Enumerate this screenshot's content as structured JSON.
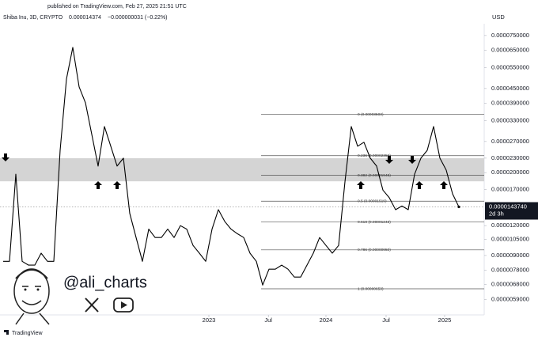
{
  "chart_data": {
    "type": "line",
    "published": "published on TradingView.com, Feb 27, 2025 21:51 UTC",
    "header_price": "0.000014374",
    "header_change": "−0.000000031 (−0.22%)",
    "currency": "USD",
    "watermark": "@ali_charts",
    "brand": "TradingView",
    "price_label": "0.0000143740",
    "countdown": "2d 3h",
    "log_scale": true,
    "grid": false,
    "xlim": [
      0,
      76
    ],
    "xticks": [
      {
        "value": 32.5,
        "label": "2023"
      },
      {
        "value": 41.9,
        "label": "Jul"
      },
      {
        "value": 51,
        "label": "2024"
      },
      {
        "value": 60.5,
        "label": "Jul"
      },
      {
        "value": 69.75,
        "label": "2025"
      }
    ],
    "ylim": [
      5e-06,
      8.4e-05
    ],
    "yticks": [
      {
        "value": 7.5e-05,
        "label": "0.0000750000"
      },
      {
        "value": 6.5e-05,
        "label": "0.0000650000"
      },
      {
        "value": 5.5e-05,
        "label": "0.0000550000"
      },
      {
        "value": 4.5e-05,
        "label": "0.0000450000"
      },
      {
        "value": 3.9e-05,
        "label": "0.0000390000"
      },
      {
        "value": 3.3e-05,
        "label": "0.0000330000"
      },
      {
        "value": 2.7e-05,
        "label": "0.0000270000"
      },
      {
        "value": 2.3e-05,
        "label": "0.0000230000"
      },
      {
        "value": 2e-05,
        "label": "0.0000200000"
      },
      {
        "value": 1.7e-05,
        "label": "0.0000170000"
      },
      {
        "value": 1.2e-05,
        "label": "0.0000120000"
      },
      {
        "value": 1.05e-05,
        "label": "0.0000105000"
      },
      {
        "value": 9e-06,
        "label": "0.0000090000"
      },
      {
        "value": 7.8e-06,
        "label": "0.0000078000"
      },
      {
        "value": 6.8e-06,
        "label": "0.0000068000"
      },
      {
        "value": 5.9e-06,
        "label": "0.0000059000"
      }
    ],
    "zone": [
      1.84e-05,
      2.3e-05
    ],
    "zone_color": "#d4d4d4",
    "fib_levels": [
      {
        "value": 3.503e-05,
        "label": "0 (0.00003503)"
      },
      {
        "value": 2.356e-05,
        "label": "0.236 (0.00002356)"
      },
      {
        "value": 1.948e-05,
        "label": "0.382 (0.00001948)"
      },
      {
        "value": 1.519e-05,
        "label": "0.5 (0.00001519)"
      },
      {
        "value": 1.243e-05,
        "label": "0.618 (0.00001243)"
      },
      {
        "value": 9.5e-06,
        "label": "0.786 (0.00000950)"
      },
      {
        "value": 6.53e-06,
        "label": "1 (0.00000653)"
      }
    ],
    "series": [
      {
        "name": "Shiba Inu, 3D, CRYPTO",
        "color": "#000000",
        "values": [
          8.51e-06,
          8.51e-06,
          1.97e-05,
          8.51e-06,
          8.2e-06,
          8.2e-06,
          9.2e-06,
          8.51e-06,
          8.51e-06,
          2.48e-05,
          4.93e-05,
          6.69e-05,
          4.57e-05,
          3.92e-05,
          2.89e-05,
          2.13e-05,
          3.12e-05,
          2.58e-05,
          2.13e-05,
          2.3e-05,
          1.35e-05,
          1.07e-05,
          8.51e-06,
          1.16e-05,
          1.07e-05,
          1.07e-05,
          1.16e-05,
          1.07e-05,
          1.2e-05,
          1.16e-05,
          9.92e-06,
          9.2e-06,
          8.51e-06,
          1.16e-05,
          1.4e-05,
          1.25e-05,
          1.16e-05,
          1.11e-05,
          1.07e-05,
          9.2e-06,
          8.51e-06,
          6.77e-06,
          7.89e-06,
          7.89e-06,
          8.2e-06,
          7.89e-06,
          7.31e-06,
          7.31e-06,
          8.2e-06,
          9.2e-06,
          1.07e-05,
          9.92e-06,
          9.2e-06,
          9.92e-06,
          1.83e-05,
          3.12e-05,
          2.58e-05,
          2.68e-05,
          2.3e-05,
          2.13e-05,
          1.69e-05,
          1.57e-05,
          1.4e-05,
          1.45e-05,
          1.4e-05,
          1.97e-05,
          2.3e-05,
          2.48e-05,
          3.12e-05,
          2.3e-05,
          2.05e-05,
          1.63e-05,
          1.4374e-05
        ]
      }
    ]
  }
}
